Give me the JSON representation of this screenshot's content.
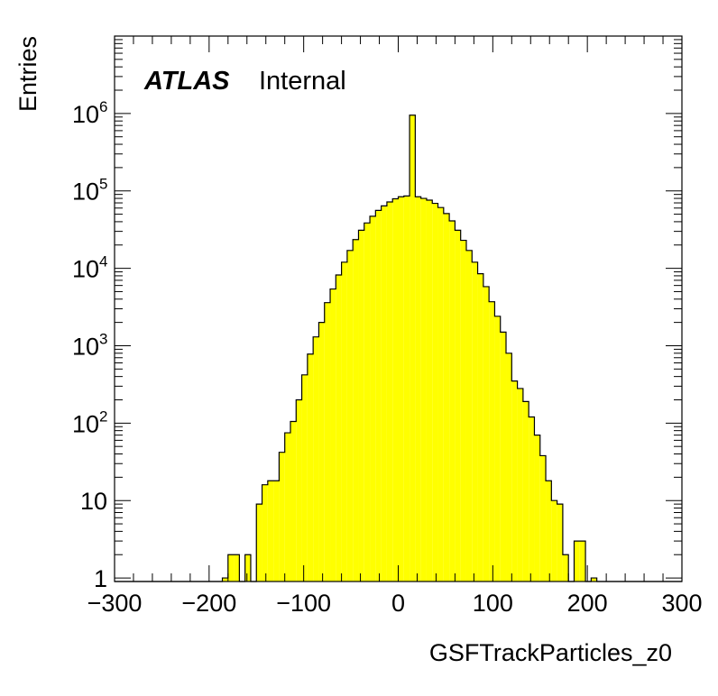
{
  "chart_data": {
    "type": "bar",
    "style": "histogram",
    "xlabel": "GSFTrackParticles_z0",
    "ylabel": "Entries",
    "xlim": [
      -300,
      300
    ],
    "ylim": [
      0.9,
      10000000
    ],
    "yscale": "log",
    "x_ticks": [
      "−300",
      "−200",
      "−100",
      "0",
      "100",
      "200",
      "300"
    ],
    "x_tick_values": [
      -300,
      -200,
      -100,
      0,
      100,
      200,
      300
    ],
    "y_ticks": [
      {
        "value": 1,
        "base": "1",
        "exp": ""
      },
      {
        "value": 10,
        "base": "10",
        "exp": ""
      },
      {
        "value": 100,
        "base": "10",
        "exp": "2"
      },
      {
        "value": 1000,
        "base": "10",
        "exp": "3"
      },
      {
        "value": 10000,
        "base": "10",
        "exp": "4"
      },
      {
        "value": 100000,
        "base": "10",
        "exp": "5"
      },
      {
        "value": 1000000,
        "base": "10",
        "exp": "6"
      }
    ],
    "bin_width": 6,
    "bin_edges_start": -300,
    "values": [
      0,
      0,
      0,
      0,
      0,
      0,
      0,
      0,
      0,
      0,
      0,
      0,
      0,
      0,
      0,
      0,
      0,
      0,
      0,
      1,
      2,
      2,
      0,
      2,
      0,
      9,
      16,
      18,
      18,
      42,
      75,
      105,
      200,
      420,
      780,
      1300,
      2000,
      3600,
      5400,
      8200,
      12000,
      17000,
      23500,
      31000,
      38500,
      47000,
      56000,
      64000,
      72000,
      79000,
      84000,
      86000,
      950000,
      84000,
      80000,
      76000,
      69000,
      61000,
      51000,
      41000,
      31000,
      23000,
      17000,
      12000,
      8500,
      5800,
      3700,
      2400,
      1500,
      800,
      350,
      280,
      190,
      120,
      70,
      38,
      18,
      10,
      9,
      2,
      0,
      3,
      3,
      0,
      1,
      0,
      0,
      0,
      0,
      0,
      0,
      0,
      0,
      0,
      0,
      0,
      0,
      0,
      0,
      0
    ],
    "fill_color": "#ffff00",
    "line_color": "#000000",
    "grid": false,
    "annotations": [
      {
        "text": "ATLAS",
        "style": "bold-italic"
      },
      {
        "text": "Internal",
        "style": "normal"
      }
    ]
  }
}
